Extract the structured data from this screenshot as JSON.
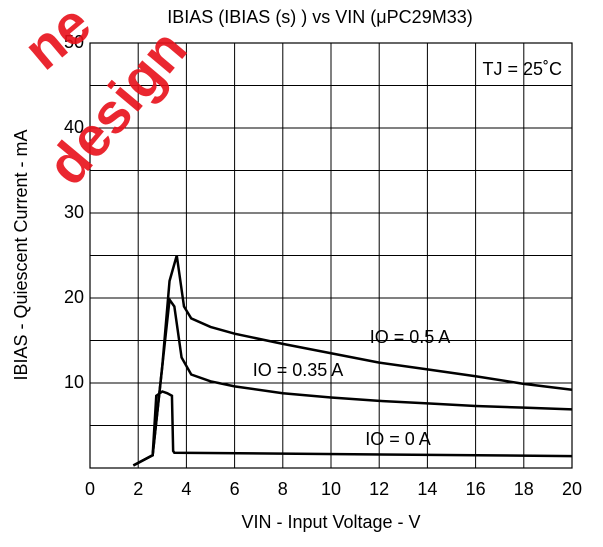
{
  "chart_data": {
    "type": "line",
    "title": "IBIAS (IBIAS (s) ) vs VIN (μPC29M33)",
    "xlabel": "VIN - Input Voltage - V",
    "ylabel": "IBIAS - Quiescent Current - mA",
    "annotation": "TJ = 25˚C",
    "watermark": [
      "ne",
      "design"
    ],
    "xlim": [
      0,
      20
    ],
    "ylim": [
      0,
      50
    ],
    "xticks": [
      0,
      2,
      4,
      6,
      8,
      10,
      12,
      14,
      16,
      18,
      20
    ],
    "yticks": [
      10,
      20,
      30,
      40,
      50
    ],
    "ygrid": [
      5,
      15,
      25,
      35,
      45
    ],
    "grid": true,
    "series": [
      {
        "name": "IO = 0.5 A",
        "color": "#000000",
        "x": [
          1.8,
          2.6,
          3.0,
          3.3,
          3.6,
          3.9,
          4.2,
          5,
          6,
          8,
          10,
          12,
          14,
          16,
          18,
          20
        ],
        "values": [
          0.3,
          1.5,
          12,
          22,
          25,
          19,
          17.6,
          16.6,
          15.8,
          14.6,
          13.5,
          12.4,
          11.6,
          10.8,
          9.9,
          9.2
        ]
      },
      {
        "name": "IO = 0.35 A",
        "color": "#000000",
        "x": [
          1.8,
          2.6,
          3.0,
          3.3,
          3.5,
          3.8,
          4.2,
          5,
          6,
          8,
          10,
          12,
          14,
          16,
          18,
          20
        ],
        "values": [
          0.3,
          1.5,
          12,
          19.8,
          19,
          13,
          11,
          10.2,
          9.6,
          8.8,
          8.3,
          7.9,
          7.6,
          7.3,
          7.1,
          6.9
        ]
      },
      {
        "name": "IO = 0 A",
        "color": "#000000",
        "x": [
          1.8,
          2.6,
          2.75,
          3.0,
          3.2,
          3.4,
          3.45,
          3.5,
          20
        ],
        "values": [
          0.3,
          1.5,
          8.5,
          9,
          8.8,
          8.5,
          2,
          1.8,
          1.4
        ]
      }
    ]
  }
}
